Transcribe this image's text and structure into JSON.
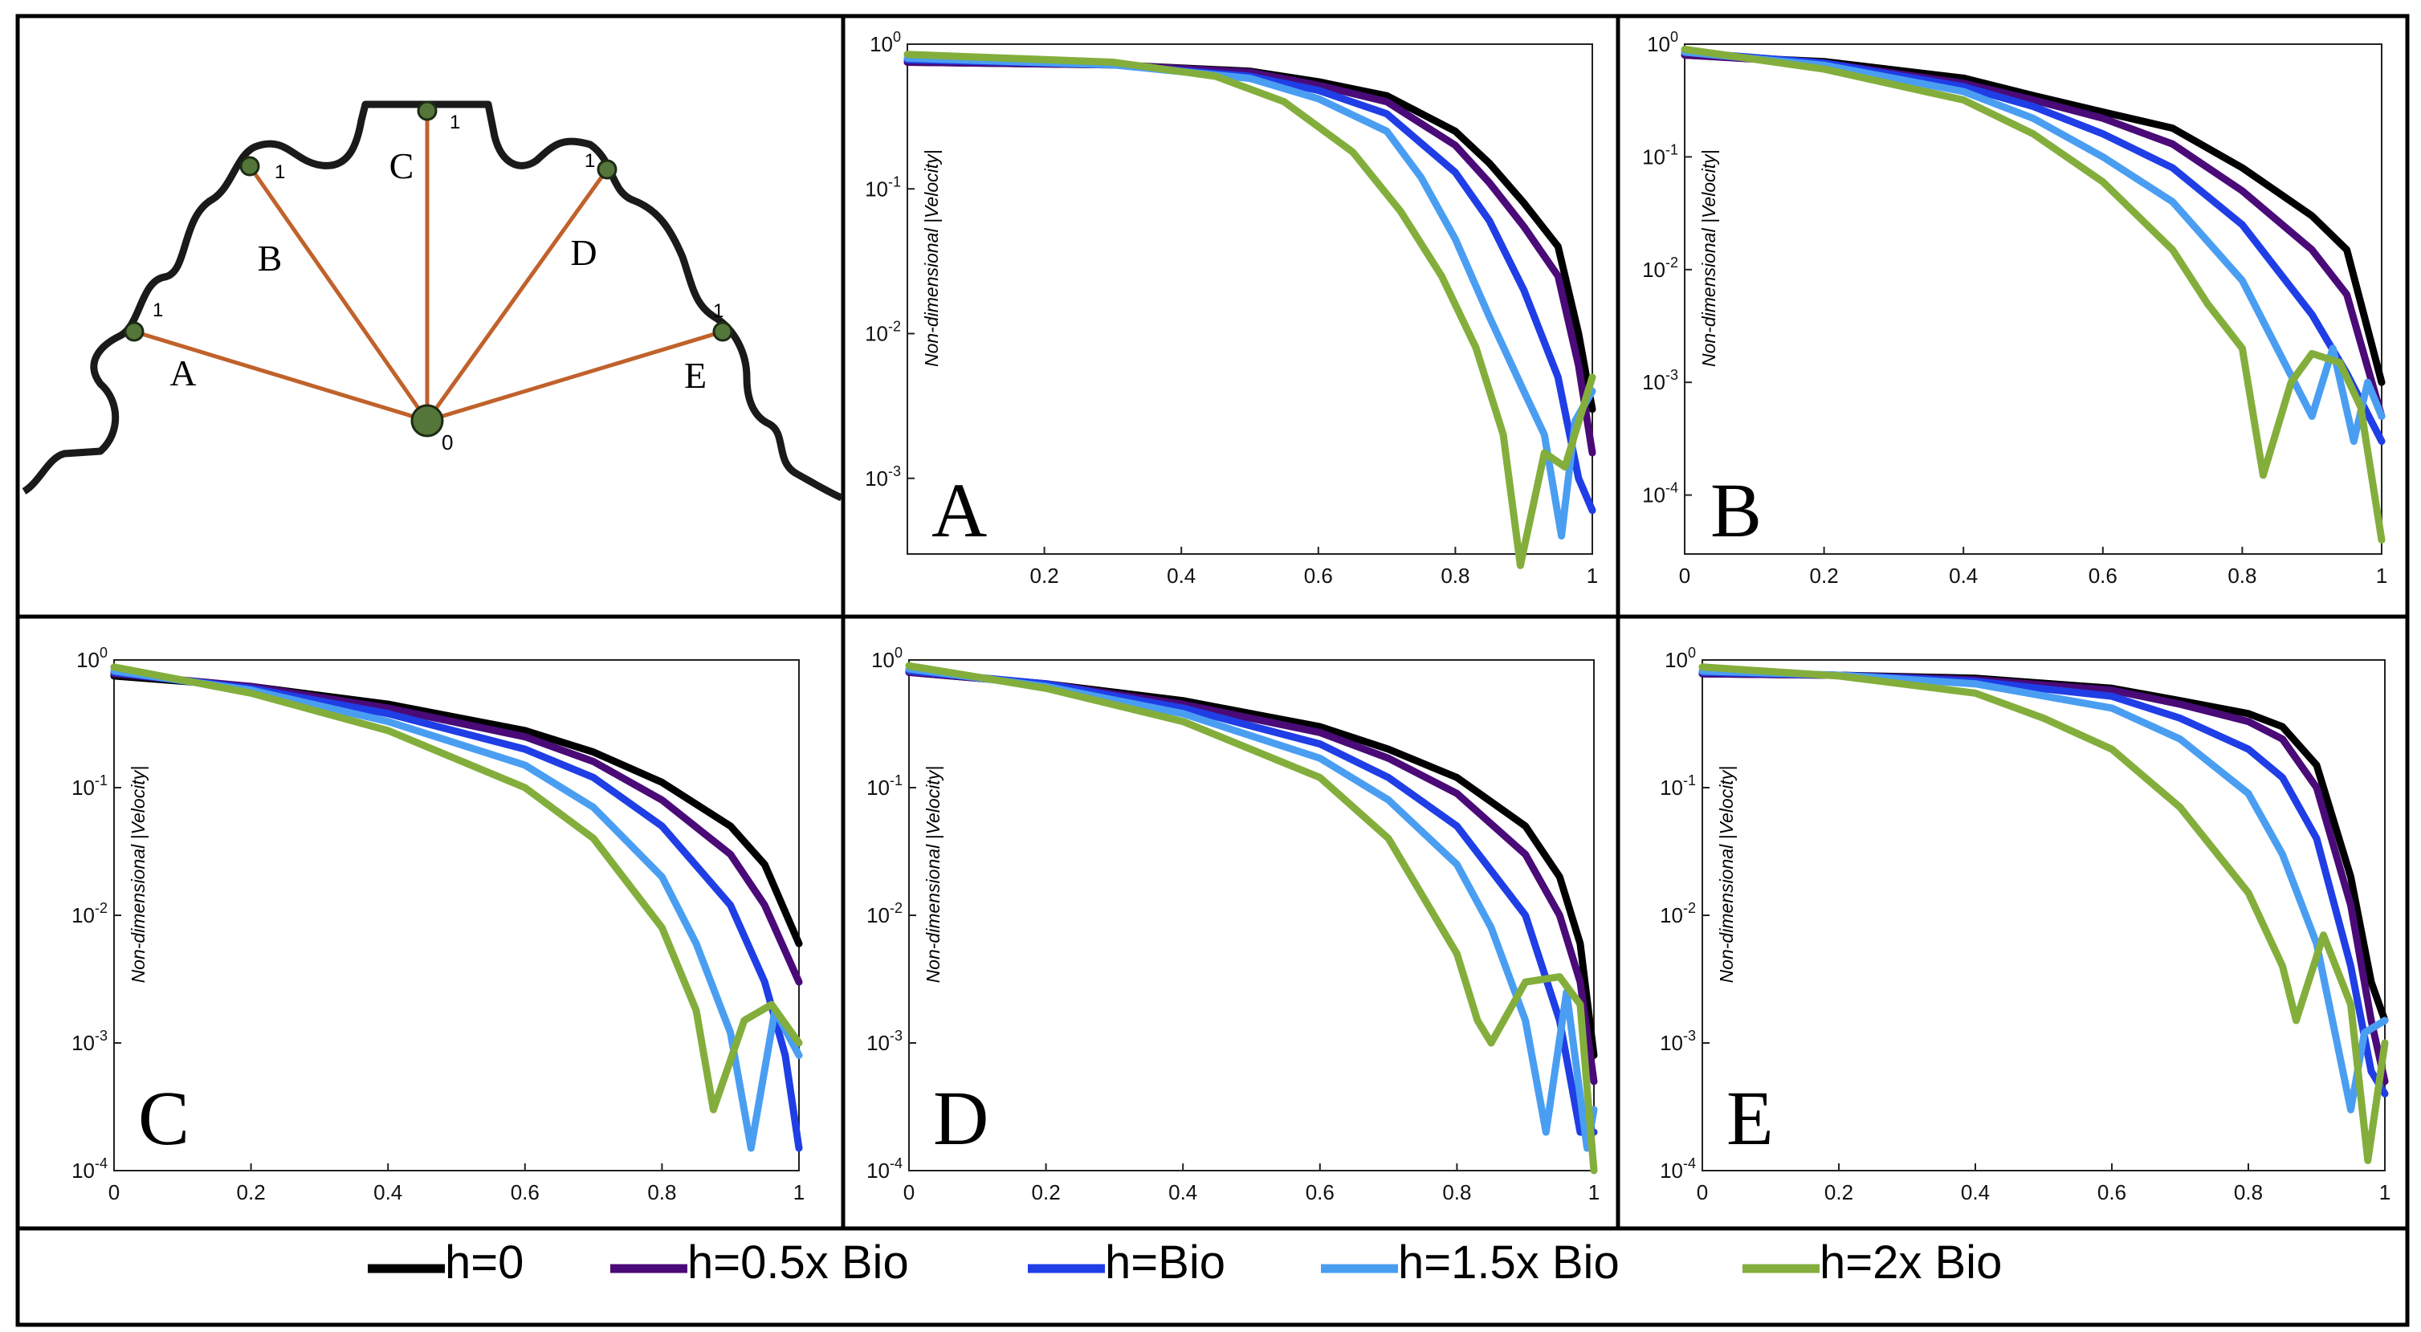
{
  "colors": {
    "h0": "#000000",
    "h05": "#4a0a78",
    "hbio": "#1f3ee6",
    "h15": "#4a9ef2",
    "h2": "#83ae3c",
    "outline": "#1a1a1a",
    "ray": "#c0622b",
    "node": "#55763a"
  },
  "diagram": {
    "segments": [
      "A",
      "B",
      "C",
      "D",
      "E"
    ],
    "origin_label": "0",
    "end_label": "1"
  },
  "legend": {
    "items": [
      {
        "label": "h=0",
        "color": "#000000"
      },
      {
        "label": "h=0.5x Bio",
        "color": "#4a0a78"
      },
      {
        "label": "h=Bio",
        "color": "#1f3ee6"
      },
      {
        "label": "h=1.5x Bio",
        "color": "#4a9ef2"
      },
      {
        "label": "h=2x Bio",
        "color": "#83ae3c"
      }
    ]
  },
  "chart_data": [
    {
      "type": "line",
      "panel": "A",
      "ylabel": "Non-dimensional |Velocity|",
      "xlim": [
        0,
        1
      ],
      "ylim": [
        0.0003,
        1
      ],
      "yscale": "log",
      "xticks": [
        "0.2",
        "0.4",
        "0.6",
        "0.8",
        "1"
      ],
      "yticks": [
        {
          "base": "10",
          "exp": "0"
        },
        {
          "base": "10",
          "exp": "-1"
        },
        {
          "base": "10",
          "exp": "-2"
        },
        {
          "base": "10",
          "exp": "-3"
        }
      ],
      "series": [
        {
          "name": "h=0",
          "x": [
            0,
            0.3,
            0.5,
            0.6,
            0.7,
            0.8,
            0.85,
            0.9,
            0.95,
            0.98,
            1.0
          ],
          "y": [
            0.75,
            0.72,
            0.65,
            0.55,
            0.44,
            0.25,
            0.15,
            0.08,
            0.04,
            0.01,
            0.003
          ]
        },
        {
          "name": "h=0.5x Bio",
          "x": [
            0,
            0.3,
            0.5,
            0.6,
            0.7,
            0.8,
            0.85,
            0.9,
            0.95,
            0.98,
            1.0
          ],
          "y": [
            0.75,
            0.72,
            0.64,
            0.52,
            0.4,
            0.2,
            0.11,
            0.055,
            0.025,
            0.006,
            0.0015
          ]
        },
        {
          "name": "h=Bio",
          "x": [
            0,
            0.3,
            0.5,
            0.6,
            0.7,
            0.8,
            0.85,
            0.9,
            0.95,
            0.98,
            1.0
          ],
          "y": [
            0.78,
            0.72,
            0.6,
            0.48,
            0.33,
            0.13,
            0.06,
            0.02,
            0.005,
            0.001,
            0.0006
          ]
        },
        {
          "name": "h=1.5x Bio",
          "x": [
            0,
            0.3,
            0.5,
            0.6,
            0.7,
            0.75,
            0.8,
            0.85,
            0.9,
            0.93,
            0.955,
            0.975,
            1.0
          ],
          "y": [
            0.8,
            0.72,
            0.58,
            0.42,
            0.25,
            0.12,
            0.045,
            0.013,
            0.004,
            0.002,
            0.0004,
            0.0025,
            0.004
          ]
        },
        {
          "name": "h=2x Bio",
          "x": [
            0,
            0.3,
            0.45,
            0.55,
            0.65,
            0.72,
            0.78,
            0.83,
            0.87,
            0.895,
            0.93,
            0.96,
            1.0
          ],
          "y": [
            0.85,
            0.75,
            0.6,
            0.4,
            0.18,
            0.07,
            0.025,
            0.008,
            0.002,
            0.00025,
            0.0015,
            0.0012,
            0.005
          ]
        }
      ]
    },
    {
      "type": "line",
      "panel": "B",
      "ylabel": "Non-dimensional |Velocity|",
      "xlim": [
        0,
        1
      ],
      "ylim": [
        3e-05,
        1
      ],
      "yscale": "log",
      "xticks": [
        "0",
        "0.2",
        "0.4",
        "0.6",
        "0.8",
        "1"
      ],
      "yticks": [
        {
          "base": "10",
          "exp": "0"
        },
        {
          "base": "10",
          "exp": "-1"
        },
        {
          "base": "10",
          "exp": "-2"
        },
        {
          "base": "10",
          "exp": "-3"
        },
        {
          "base": "10",
          "exp": "-4"
        }
      ],
      "series": [
        {
          "name": "h=0",
          "x": [
            0,
            0.2,
            0.4,
            0.5,
            0.6,
            0.7,
            0.8,
            0.9,
            0.95,
            1.0
          ],
          "y": [
            0.8,
            0.7,
            0.5,
            0.35,
            0.25,
            0.18,
            0.08,
            0.03,
            0.015,
            0.001
          ]
        },
        {
          "name": "h=0.5x Bio",
          "x": [
            0,
            0.2,
            0.4,
            0.5,
            0.6,
            0.7,
            0.8,
            0.9,
            0.95,
            1.0
          ],
          "y": [
            0.8,
            0.68,
            0.45,
            0.32,
            0.22,
            0.13,
            0.05,
            0.015,
            0.006,
            0.0005
          ]
        },
        {
          "name": "h=Bio",
          "x": [
            0,
            0.2,
            0.4,
            0.5,
            0.6,
            0.7,
            0.8,
            0.9,
            0.95,
            1.0
          ],
          "y": [
            0.85,
            0.68,
            0.42,
            0.28,
            0.16,
            0.08,
            0.025,
            0.004,
            0.0012,
            0.0003
          ]
        },
        {
          "name": "h=1.5x Bio",
          "x": [
            0,
            0.2,
            0.4,
            0.5,
            0.6,
            0.7,
            0.8,
            0.85,
            0.9,
            0.93,
            0.96,
            0.98,
            1.0
          ],
          "y": [
            0.85,
            0.65,
            0.38,
            0.22,
            0.1,
            0.04,
            0.008,
            0.002,
            0.0005,
            0.002,
            0.0003,
            0.001,
            0.0005
          ]
        },
        {
          "name": "h=2x Bio",
          "x": [
            0,
            0.2,
            0.4,
            0.5,
            0.6,
            0.7,
            0.75,
            0.8,
            0.83,
            0.87,
            0.9,
            0.94,
            0.97,
            1.0
          ],
          "y": [
            0.9,
            0.6,
            0.32,
            0.16,
            0.06,
            0.015,
            0.005,
            0.002,
            0.00015,
            0.001,
            0.0018,
            0.0015,
            0.0006,
            4e-05
          ]
        }
      ]
    },
    {
      "type": "line",
      "panel": "C",
      "ylabel": "Non-dimensional |Velocity|",
      "xlim": [
        0,
        1
      ],
      "ylim": [
        0.0001,
        1
      ],
      "yscale": "log",
      "xticks": [
        "0",
        "0.2",
        "0.4",
        "0.6",
        "0.8",
        "1"
      ],
      "yticks": [
        {
          "base": "10",
          "exp": "0"
        },
        {
          "base": "10",
          "exp": "-1"
        },
        {
          "base": "10",
          "exp": "-2"
        },
        {
          "base": "10",
          "exp": "-3"
        },
        {
          "base": "10",
          "exp": "-4"
        }
      ],
      "series": [
        {
          "name": "h=0",
          "x": [
            0,
            0.2,
            0.4,
            0.6,
            0.7,
            0.8,
            0.9,
            0.95,
            1.0
          ],
          "y": [
            0.75,
            0.62,
            0.45,
            0.28,
            0.19,
            0.11,
            0.05,
            0.025,
            0.006
          ]
        },
        {
          "name": "h=0.5x Bio",
          "x": [
            0,
            0.2,
            0.4,
            0.6,
            0.7,
            0.8,
            0.9,
            0.95,
            1.0
          ],
          "y": [
            0.78,
            0.62,
            0.42,
            0.25,
            0.16,
            0.08,
            0.03,
            0.012,
            0.003
          ]
        },
        {
          "name": "h=Bio",
          "x": [
            0,
            0.2,
            0.4,
            0.6,
            0.7,
            0.8,
            0.9,
            0.95,
            0.98,
            1.0
          ],
          "y": [
            0.8,
            0.6,
            0.38,
            0.2,
            0.12,
            0.05,
            0.012,
            0.003,
            0.0008,
            0.00015
          ]
        },
        {
          "name": "h=1.5x Bio",
          "x": [
            0,
            0.2,
            0.4,
            0.6,
            0.7,
            0.8,
            0.85,
            0.9,
            0.93,
            0.965,
            1.0
          ],
          "y": [
            0.82,
            0.58,
            0.33,
            0.15,
            0.07,
            0.02,
            0.006,
            0.0012,
            0.00015,
            0.0018,
            0.0008
          ]
        },
        {
          "name": "h=2x Bio",
          "x": [
            0,
            0.2,
            0.4,
            0.6,
            0.7,
            0.8,
            0.85,
            0.875,
            0.92,
            0.96,
            1.0
          ],
          "y": [
            0.88,
            0.55,
            0.28,
            0.1,
            0.04,
            0.008,
            0.0018,
            0.0003,
            0.0015,
            0.002,
            0.001
          ]
        }
      ]
    },
    {
      "type": "line",
      "panel": "D",
      "ylabel": "Non-dimensional |Velocity|",
      "xlim": [
        0,
        1
      ],
      "ylim": [
        0.0001,
        1
      ],
      "yscale": "log",
      "xticks": [
        "0",
        "0.2",
        "0.4",
        "0.6",
        "0.8",
        "1"
      ],
      "yticks": [
        {
          "base": "10",
          "exp": "0"
        },
        {
          "base": "10",
          "exp": "-1"
        },
        {
          "base": "10",
          "exp": "-2"
        },
        {
          "base": "10",
          "exp": "-3"
        },
        {
          "base": "10",
          "exp": "-4"
        }
      ],
      "series": [
        {
          "name": "h=0",
          "x": [
            0,
            0.2,
            0.4,
            0.6,
            0.7,
            0.8,
            0.9,
            0.95,
            0.98,
            1.0
          ],
          "y": [
            0.8,
            0.65,
            0.48,
            0.3,
            0.2,
            0.12,
            0.05,
            0.02,
            0.006,
            0.0008
          ]
        },
        {
          "name": "h=0.5x Bio",
          "x": [
            0,
            0.2,
            0.4,
            0.6,
            0.7,
            0.8,
            0.9,
            0.95,
            0.98,
            1.0
          ],
          "y": [
            0.8,
            0.65,
            0.45,
            0.27,
            0.17,
            0.09,
            0.03,
            0.01,
            0.003,
            0.0005
          ]
        },
        {
          "name": "h=Bio",
          "x": [
            0,
            0.2,
            0.4,
            0.6,
            0.7,
            0.8,
            0.9,
            0.95,
            0.98,
            1.0
          ],
          "y": [
            0.82,
            0.65,
            0.42,
            0.22,
            0.12,
            0.05,
            0.01,
            0.0015,
            0.0002,
            0.0002
          ]
        },
        {
          "name": "h=1.5x Bio",
          "x": [
            0,
            0.2,
            0.4,
            0.6,
            0.7,
            0.8,
            0.85,
            0.9,
            0.93,
            0.96,
            0.99,
            1.0
          ],
          "y": [
            0.85,
            0.62,
            0.38,
            0.17,
            0.08,
            0.025,
            0.008,
            0.0015,
            0.0002,
            0.0025,
            0.00015,
            0.0003
          ]
        },
        {
          "name": "h=2x Bio",
          "x": [
            0,
            0.2,
            0.4,
            0.6,
            0.7,
            0.8,
            0.83,
            0.85,
            0.9,
            0.95,
            0.98,
            1.0
          ],
          "y": [
            0.9,
            0.6,
            0.33,
            0.12,
            0.04,
            0.005,
            0.0015,
            0.001,
            0.003,
            0.0033,
            0.002,
            0.0001
          ]
        }
      ]
    },
    {
      "type": "line",
      "panel": "E",
      "ylabel": "Non-dimensional |Velocity|",
      "xlim": [
        0,
        1
      ],
      "ylim": [
        0.0001,
        1
      ],
      "yscale": "log",
      "xticks": [
        "0",
        "0.2",
        "0.4",
        "0.6",
        "0.8",
        "1"
      ],
      "yticks": [
        {
          "base": "10",
          "exp": "0"
        },
        {
          "base": "10",
          "exp": "-1"
        },
        {
          "base": "10",
          "exp": "-2"
        },
        {
          "base": "10",
          "exp": "-3"
        },
        {
          "base": "10",
          "exp": "-4"
        }
      ],
      "series": [
        {
          "name": "h=0",
          "x": [
            0,
            0.2,
            0.4,
            0.6,
            0.7,
            0.8,
            0.85,
            0.9,
            0.95,
            0.98,
            1.0
          ],
          "y": [
            0.78,
            0.76,
            0.72,
            0.6,
            0.48,
            0.38,
            0.3,
            0.15,
            0.02,
            0.003,
            0.0015
          ]
        },
        {
          "name": "h=0.5x Bio",
          "x": [
            0,
            0.2,
            0.4,
            0.6,
            0.7,
            0.8,
            0.85,
            0.9,
            0.95,
            0.98,
            1.0
          ],
          "y": [
            0.78,
            0.76,
            0.7,
            0.58,
            0.45,
            0.33,
            0.24,
            0.1,
            0.012,
            0.0015,
            0.0005
          ]
        },
        {
          "name": "h=Bio",
          "x": [
            0,
            0.2,
            0.4,
            0.6,
            0.7,
            0.8,
            0.85,
            0.9,
            0.95,
            0.98,
            1.0
          ],
          "y": [
            0.8,
            0.76,
            0.68,
            0.52,
            0.35,
            0.2,
            0.12,
            0.04,
            0.004,
            0.0006,
            0.0004
          ]
        },
        {
          "name": "h=1.5x Bio",
          "x": [
            0,
            0.2,
            0.4,
            0.6,
            0.7,
            0.8,
            0.85,
            0.9,
            0.93,
            0.95,
            0.97,
            1.0
          ],
          "y": [
            0.82,
            0.76,
            0.65,
            0.42,
            0.24,
            0.09,
            0.03,
            0.006,
            0.001,
            0.0003,
            0.0012,
            0.0015
          ]
        },
        {
          "name": "h=2x Bio",
          "x": [
            0,
            0.2,
            0.4,
            0.5,
            0.6,
            0.7,
            0.8,
            0.85,
            0.87,
            0.91,
            0.95,
            0.975,
            1.0
          ],
          "y": [
            0.88,
            0.75,
            0.55,
            0.35,
            0.2,
            0.07,
            0.015,
            0.004,
            0.0015,
            0.007,
            0.002,
            0.00012,
            0.001
          ]
        }
      ]
    }
  ]
}
